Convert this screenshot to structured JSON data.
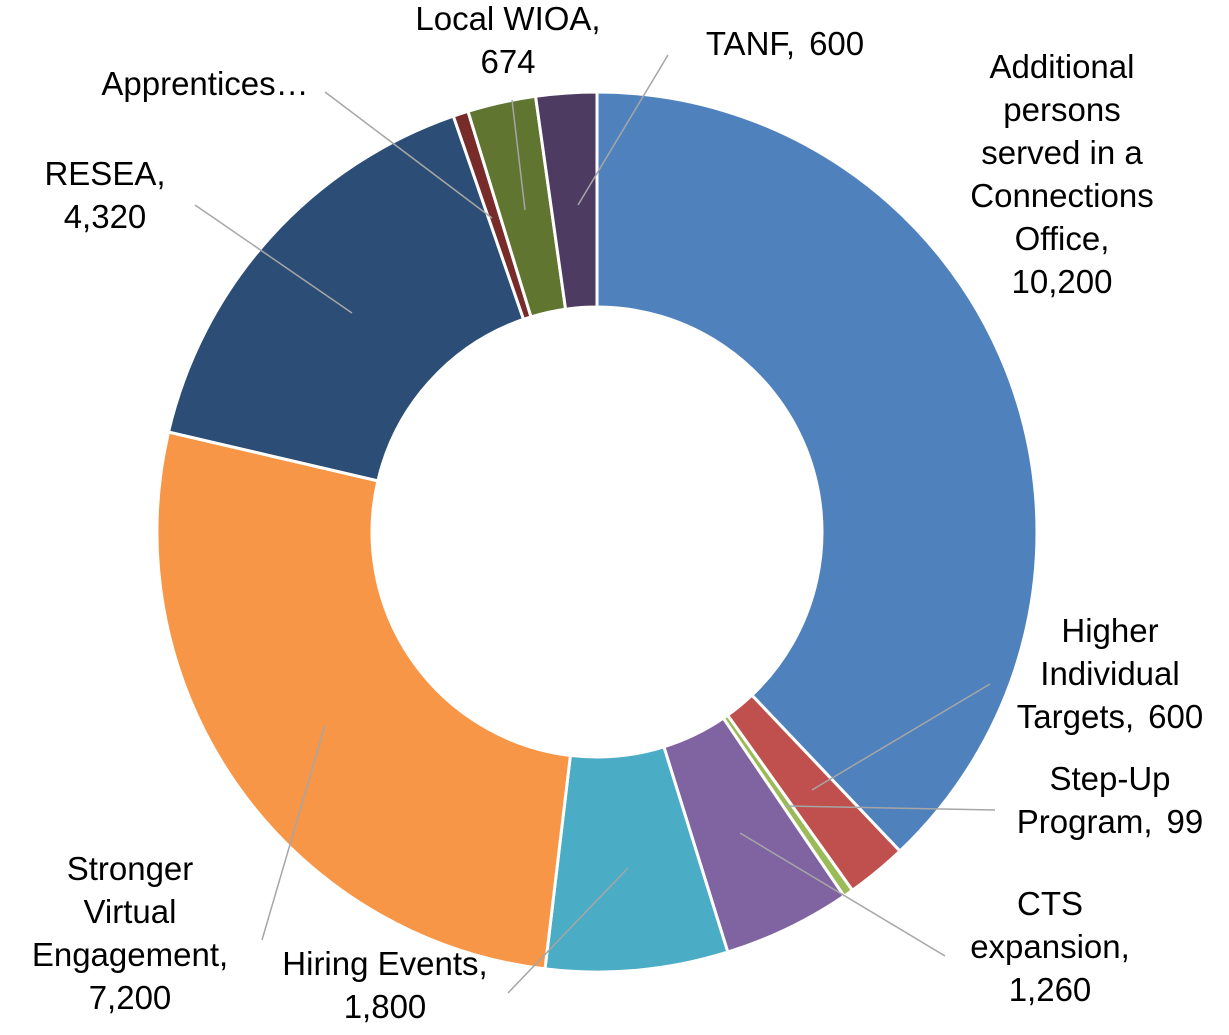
{
  "chart_data": {
    "type": "donut",
    "categories": [
      "Additional persons served in a Connections Office,",
      "Higher Individual Targets,",
      "Step-Up Program,",
      "CTS expansion,",
      "Hiring Events,",
      "Stronger Virtual Engagement,",
      "RESEA,",
      "Apprentices…",
      "Local WIOA,",
      "TANF,"
    ],
    "values": [
      10200,
      600,
      99,
      1260,
      1800,
      7200,
      4320,
      150,
      674,
      600
    ],
    "value_labels": [
      "10,200",
      "600",
      "99",
      "1,260",
      "1,800",
      "7,200",
      "4,320",
      null,
      "674",
      "600"
    ],
    "colors": [
      "#4f81bd",
      "#c0504d",
      "#9bbb59",
      "#8064a2",
      "#4bacc6",
      "#f79646",
      "#2c4d75",
      "#772c2a",
      "#5f7530",
      "#4d3b62"
    ]
  }
}
